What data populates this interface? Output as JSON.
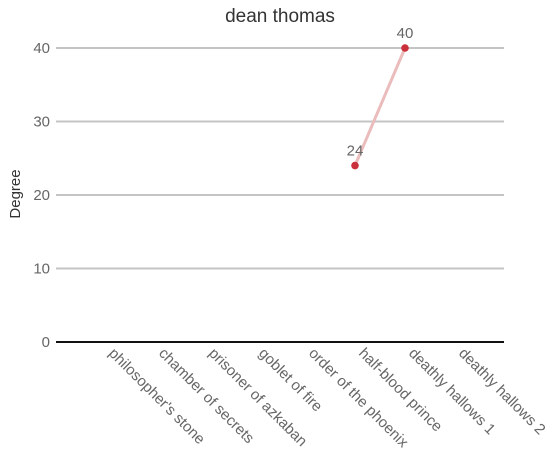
{
  "chart_data": {
    "type": "line",
    "title": "dean thomas",
    "xlabel": "",
    "ylabel": "Degree",
    "categories": [
      "philosopher's stone",
      "chamber of secrets",
      "prisoner of azkaban",
      "goblet of fire",
      "order of the phoenix",
      "half-blood prince",
      "deathly hallows 1",
      "deathly hallows 2"
    ],
    "series": [
      {
        "values": [
          null,
          null,
          null,
          null,
          null,
          24,
          40,
          null
        ],
        "line_color": "#ebbcbc",
        "point_color": "#c9303a"
      }
    ],
    "data_labels": [
      "24",
      "40"
    ],
    "ylim": [
      0,
      40
    ],
    "yticks": [
      0,
      10,
      20,
      30,
      40
    ],
    "grid": true,
    "legend": "none",
    "colors": {
      "grid": "#c4c4c4",
      "zero_line": "#111111",
      "line": "#ebbcbc",
      "point": "#c9303a"
    }
  }
}
